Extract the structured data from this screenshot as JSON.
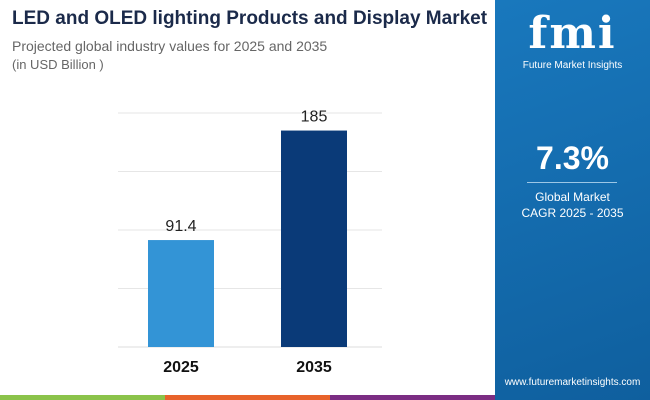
{
  "header": {
    "title": "LED and OLED lighting Products and Display Market",
    "subtitle": "Projected global industry values for 2025 and 2035",
    "unit": "(in USD Billion )"
  },
  "chart_data": {
    "type": "bar",
    "categories": [
      "2025",
      "2035"
    ],
    "values": [
      91.4,
      185
    ],
    "data_labels": [
      "91.4",
      "185"
    ],
    "ylim": [
      0,
      200
    ],
    "grid": true,
    "bar_colors": [
      "#3394d6",
      "#0a3a78"
    ],
    "title": "LED and OLED lighting Products and Display Market",
    "xlabel": "",
    "ylabel": ""
  },
  "panel": {
    "logo": "fmi",
    "logo_text": "Future Market Insights",
    "cagr_value": "7.3%",
    "cagr_label_1": "Global Market",
    "cagr_label_2": "CAGR 2025 - 2035",
    "url": "www.futuremarketinsights.com",
    "color": "#1674b8"
  },
  "strip_colors": [
    "#8bc34a",
    "#e8632b",
    "#7b2d83"
  ]
}
